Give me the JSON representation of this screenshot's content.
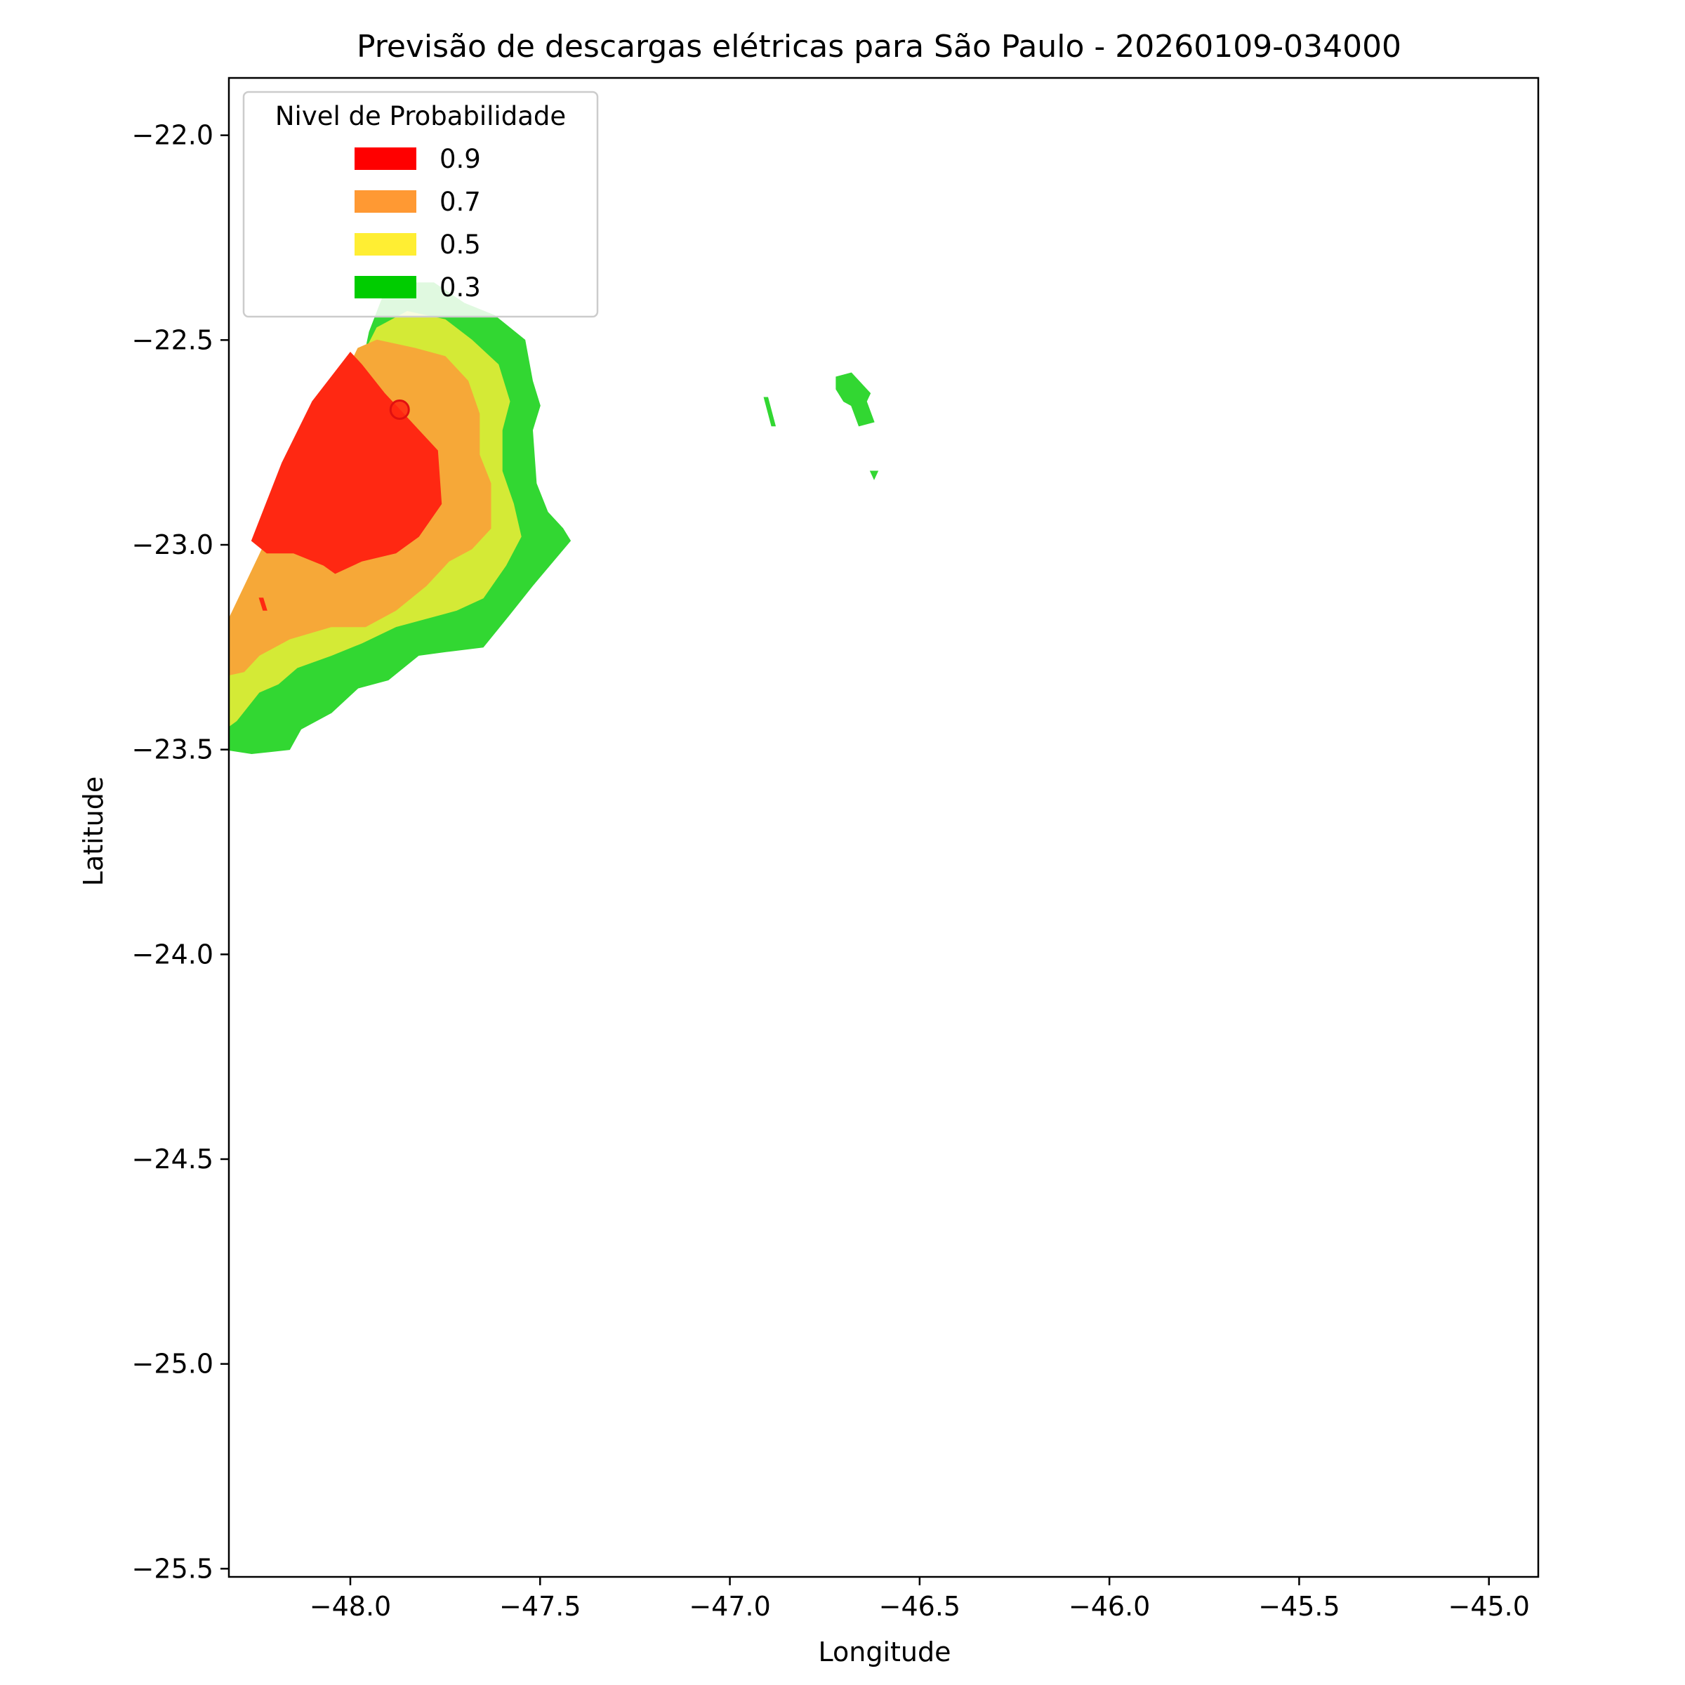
{
  "chart_data": {
    "type": "filled-contour",
    "title": "Previsão de descargas elétricas para São Paulo - 20260109-034000",
    "xlabel": "Longitude",
    "ylabel": "Latitude",
    "xlim": [
      -48.32,
      -44.87
    ],
    "ylim": [
      -25.52,
      -21.86
    ],
    "xticks": [
      -48.0,
      -47.5,
      -47.0,
      -46.5,
      -46.0,
      -45.5,
      -45.0
    ],
    "xtick_labels": [
      "−48.0",
      "−47.5",
      "−47.0",
      "−46.5",
      "−46.0",
      "−45.5",
      "−45.0"
    ],
    "yticks": [
      -22.0,
      -22.5,
      -23.0,
      -23.5,
      -24.0,
      -24.5,
      -25.0,
      -25.5
    ],
    "ytick_labels": [
      "−22.0",
      "−22.5",
      "−23.0",
      "−23.5",
      "−24.0",
      "−24.5",
      "−25.0",
      "−25.5"
    ],
    "grid": false,
    "legend": {
      "title": "Nivel de Probabilidade",
      "placement": "upper-left",
      "entries": [
        {
          "label": "0.9",
          "color": "#ff0000"
        },
        {
          "label": "0.7",
          "color": "#ff9933"
        },
        {
          "label": "0.5",
          "color": "#ffee33"
        },
        {
          "label": "0.3",
          "color": "#00cc00"
        }
      ]
    },
    "regions": [
      {
        "level": "0.3",
        "color": "#32d732",
        "points": [
          [
            -48.33,
            -23.5
          ],
          [
            -48.26,
            -23.51
          ],
          [
            -48.16,
            -23.5
          ],
          [
            -48.13,
            -23.45
          ],
          [
            -48.05,
            -23.41
          ],
          [
            -47.98,
            -23.35
          ],
          [
            -47.9,
            -23.33
          ],
          [
            -47.82,
            -23.27
          ],
          [
            -47.74,
            -23.26
          ],
          [
            -47.65,
            -23.25
          ],
          [
            -47.58,
            -23.17
          ],
          [
            -47.52,
            -23.1
          ],
          [
            -47.42,
            -22.99
          ],
          [
            -47.44,
            -22.96
          ],
          [
            -47.48,
            -22.92
          ],
          [
            -47.51,
            -22.85
          ],
          [
            -47.52,
            -22.72
          ],
          [
            -47.5,
            -22.66
          ],
          [
            -47.52,
            -22.6
          ],
          [
            -47.54,
            -22.5
          ],
          [
            -47.62,
            -22.44
          ],
          [
            -47.7,
            -22.41
          ],
          [
            -47.78,
            -22.36
          ],
          [
            -47.9,
            -22.36
          ],
          [
            -47.95,
            -22.48
          ],
          [
            -48.0,
            -22.7
          ],
          [
            -48.33,
            -23.3
          ]
        ]
      },
      {
        "level": "0.5",
        "color": "#d4ea36",
        "points": [
          [
            -48.33,
            -23.45
          ],
          [
            -48.3,
            -23.43
          ],
          [
            -48.24,
            -23.36
          ],
          [
            -48.19,
            -23.34
          ],
          [
            -48.14,
            -23.3
          ],
          [
            -48.05,
            -23.27
          ],
          [
            -47.97,
            -23.24
          ],
          [
            -47.88,
            -23.2
          ],
          [
            -47.8,
            -23.18
          ],
          [
            -47.72,
            -23.16
          ],
          [
            -47.65,
            -23.13
          ],
          [
            -47.59,
            -23.05
          ],
          [
            -47.55,
            -22.98
          ],
          [
            -47.57,
            -22.9
          ],
          [
            -47.6,
            -22.82
          ],
          [
            -47.6,
            -22.72
          ],
          [
            -47.58,
            -22.65
          ],
          [
            -47.61,
            -22.56
          ],
          [
            -47.68,
            -22.5
          ],
          [
            -47.75,
            -22.45
          ],
          [
            -47.85,
            -22.43
          ],
          [
            -47.93,
            -22.47
          ],
          [
            -48.33,
            -23.2
          ]
        ]
      },
      {
        "level": "0.7",
        "color": "#f6a838",
        "points": [
          [
            -48.33,
            -23.32
          ],
          [
            -48.28,
            -23.31
          ],
          [
            -48.24,
            -23.27
          ],
          [
            -48.16,
            -23.23
          ],
          [
            -48.05,
            -23.2
          ],
          [
            -47.96,
            -23.2
          ],
          [
            -47.88,
            -23.16
          ],
          [
            -47.8,
            -23.1
          ],
          [
            -47.74,
            -23.04
          ],
          [
            -47.68,
            -23.01
          ],
          [
            -47.63,
            -22.96
          ],
          [
            -47.63,
            -22.85
          ],
          [
            -47.66,
            -22.78
          ],
          [
            -47.66,
            -22.68
          ],
          [
            -47.69,
            -22.6
          ],
          [
            -47.75,
            -22.54
          ],
          [
            -47.83,
            -22.52
          ],
          [
            -47.93,
            -22.5
          ],
          [
            -47.98,
            -22.52
          ],
          [
            -48.33,
            -23.2
          ]
        ]
      },
      {
        "level": "0.9",
        "color": "#ff2812",
        "points": [
          [
            -48.26,
            -22.99
          ],
          [
            -48.22,
            -23.02
          ],
          [
            -48.15,
            -23.02
          ],
          [
            -48.07,
            -23.05
          ],
          [
            -48.04,
            -23.07
          ],
          [
            -47.97,
            -23.04
          ],
          [
            -47.88,
            -23.02
          ],
          [
            -47.82,
            -22.98
          ],
          [
            -47.76,
            -22.9
          ],
          [
            -47.77,
            -22.77
          ],
          [
            -47.82,
            -22.72
          ],
          [
            -47.86,
            -22.68
          ],
          [
            -47.91,
            -22.63
          ],
          [
            -47.97,
            -22.56
          ],
          [
            -48.0,
            -22.53
          ],
          [
            -48.1,
            -22.65
          ],
          [
            -48.18,
            -22.8
          ]
        ]
      },
      {
        "level": "0.3",
        "color": "#32d732",
        "points": [
          [
            -46.72,
            -22.59
          ],
          [
            -46.68,
            -22.58
          ],
          [
            -46.66,
            -22.6
          ],
          [
            -46.63,
            -22.63
          ],
          [
            -46.64,
            -22.65
          ],
          [
            -46.62,
            -22.7
          ],
          [
            -46.66,
            -22.71
          ],
          [
            -46.68,
            -22.66
          ],
          [
            -46.7,
            -22.65
          ],
          [
            -46.72,
            -22.62
          ]
        ]
      },
      {
        "level": "0.3",
        "color": "#32d732",
        "points": [
          [
            -46.91,
            -22.64
          ],
          [
            -46.9,
            -22.64
          ],
          [
            -46.88,
            -22.71
          ],
          [
            -46.89,
            -22.71
          ]
        ]
      },
      {
        "level": "0.3",
        "color": "#32d732",
        "points": [
          [
            -46.63,
            -22.82
          ],
          [
            -46.61,
            -22.82
          ],
          [
            -46.62,
            -22.84
          ]
        ]
      },
      {
        "level": "0.9",
        "color": "#ff2812",
        "points": [
          [
            -48.24,
            -23.13
          ],
          [
            -48.23,
            -23.13
          ],
          [
            -48.22,
            -23.16
          ],
          [
            -48.23,
            -23.16
          ]
        ]
      }
    ],
    "markers": [
      {
        "x": -47.87,
        "y": -22.67,
        "color": "#ff2812"
      }
    ]
  }
}
